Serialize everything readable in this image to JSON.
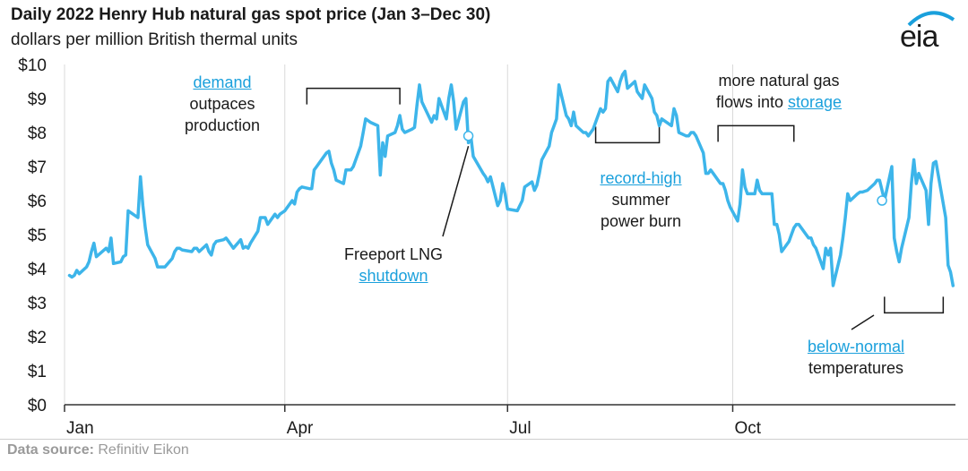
{
  "header": {
    "title": "Daily 2022 Henry Hub natural gas spot price (Jan 3–Dec 30)",
    "subtitle": "dollars per million British thermal units",
    "logo_text": "eia"
  },
  "footer": {
    "source_label": "Data source:",
    "source_value": "Refinitiv Eikon"
  },
  "annotations": {
    "demand_link": "demand",
    "demand_rest1": "outpaces",
    "demand_rest2": "production",
    "freeport_text": "Freeport LNG",
    "freeport_link": "shutdown",
    "record_link": "record-high",
    "record_rest1": "summer",
    "record_rest2": "power burn",
    "storage_text1": "more natural gas",
    "storage_text2": "flows into",
    "storage_link": "storage",
    "temp_link": "below-normal",
    "temp_rest": "temperatures"
  },
  "colors": {
    "line": "#3db5ea",
    "link": "#1aa0dc",
    "grid": "#d9d9d9",
    "text": "#1a1a1a"
  },
  "chart_data": {
    "type": "line",
    "title": "Daily 2022 Henry Hub natural gas spot price (Jan 3–Dec 30)",
    "ylabel": "dollars per million British thermal units",
    "ylim": [
      0,
      10
    ],
    "xlim": [
      "2022-01-01",
      "2022-12-31"
    ],
    "yticks": [
      0,
      1,
      2,
      3,
      4,
      5,
      6,
      7,
      8,
      9,
      10
    ],
    "ytick_labels": [
      "$0",
      "$1",
      "$2",
      "$3",
      "$4",
      "$5",
      "$6",
      "$7",
      "$8",
      "$9",
      "$10"
    ],
    "xticks": [
      "2022-01-01",
      "2022-04-01",
      "2022-07-01",
      "2022-10-01"
    ],
    "xtick_labels": [
      "Jan",
      "Apr",
      "Jul",
      "Oct"
    ],
    "grid": "vertical",
    "series": [
      {
        "points": [
          [
            "2022-01-03",
            3.8
          ],
          [
            "2022-01-04",
            3.75
          ],
          [
            "2022-01-05",
            3.8
          ],
          [
            "2022-01-06",
            3.95
          ],
          [
            "2022-01-07",
            3.85
          ],
          [
            "2022-01-10",
            4.05
          ],
          [
            "2022-01-11",
            4.2
          ],
          [
            "2022-01-12",
            4.5
          ],
          [
            "2022-01-13",
            4.75
          ],
          [
            "2022-01-14",
            4.35
          ],
          [
            "2022-01-18",
            4.6
          ],
          [
            "2022-01-19",
            4.5
          ],
          [
            "2022-01-20",
            4.9
          ],
          [
            "2022-01-21",
            4.15
          ],
          [
            "2022-01-24",
            4.2
          ],
          [
            "2022-01-25",
            4.35
          ],
          [
            "2022-01-26",
            4.4
          ],
          [
            "2022-01-27",
            5.7
          ],
          [
            "2022-01-28",
            5.65
          ],
          [
            "2022-01-31",
            5.5
          ],
          [
            "2022-02-01",
            6.7
          ],
          [
            "2022-02-02",
            5.85
          ],
          [
            "2022-02-03",
            5.2
          ],
          [
            "2022-02-04",
            4.7
          ],
          [
            "2022-02-07",
            4.3
          ],
          [
            "2022-02-08",
            4.05
          ],
          [
            "2022-02-09",
            4.05
          ],
          [
            "2022-02-10",
            4.05
          ],
          [
            "2022-02-11",
            4.05
          ],
          [
            "2022-02-14",
            4.3
          ],
          [
            "2022-02-15",
            4.5
          ],
          [
            "2022-02-16",
            4.6
          ],
          [
            "2022-02-17",
            4.6
          ],
          [
            "2022-02-18",
            4.55
          ],
          [
            "2022-02-22",
            4.5
          ],
          [
            "2022-02-23",
            4.6
          ],
          [
            "2022-02-24",
            4.6
          ],
          [
            "2022-02-25",
            4.5
          ],
          [
            "2022-02-28",
            4.7
          ],
          [
            "2022-03-01",
            4.5
          ],
          [
            "2022-03-02",
            4.4
          ],
          [
            "2022-03-03",
            4.7
          ],
          [
            "2022-03-04",
            4.8
          ],
          [
            "2022-03-07",
            4.85
          ],
          [
            "2022-03-08",
            4.9
          ],
          [
            "2022-03-09",
            4.8
          ],
          [
            "2022-03-10",
            4.7
          ],
          [
            "2022-03-11",
            4.6
          ],
          [
            "2022-03-14",
            4.85
          ],
          [
            "2022-03-15",
            4.6
          ],
          [
            "2022-03-16",
            4.65
          ],
          [
            "2022-03-17",
            4.6
          ],
          [
            "2022-03-18",
            4.75
          ],
          [
            "2022-03-21",
            5.1
          ],
          [
            "2022-03-22",
            5.5
          ],
          [
            "2022-03-23",
            5.5
          ],
          [
            "2022-03-24",
            5.5
          ],
          [
            "2022-03-25",
            5.3
          ],
          [
            "2022-03-28",
            5.6
          ],
          [
            "2022-03-29",
            5.5
          ],
          [
            "2022-03-30",
            5.6
          ],
          [
            "2022-04-01",
            5.7
          ],
          [
            "2022-04-04",
            6.0
          ],
          [
            "2022-04-05",
            5.9
          ],
          [
            "2022-04-06",
            6.25
          ],
          [
            "2022-04-07",
            6.35
          ],
          [
            "2022-04-08",
            6.4
          ],
          [
            "2022-04-11",
            6.35
          ],
          [
            "2022-04-12",
            6.35
          ],
          [
            "2022-04-13",
            6.9
          ],
          [
            "2022-04-14",
            7.0
          ],
          [
            "2022-04-18",
            7.4
          ],
          [
            "2022-04-19",
            7.45
          ],
          [
            "2022-04-20",
            7.1
          ],
          [
            "2022-04-21",
            6.9
          ],
          [
            "2022-04-22",
            6.6
          ],
          [
            "2022-04-25",
            6.5
          ],
          [
            "2022-04-26",
            6.9
          ],
          [
            "2022-04-27",
            6.9
          ],
          [
            "2022-04-28",
            6.9
          ],
          [
            "2022-04-29",
            7.0
          ],
          [
            "2022-05-02",
            7.6
          ],
          [
            "2022-05-03",
            8.0
          ],
          [
            "2022-05-04",
            8.4
          ],
          [
            "2022-05-05",
            8.35
          ],
          [
            "2022-05-06",
            8.3
          ],
          [
            "2022-05-09",
            8.2
          ],
          [
            "2022-05-10",
            6.75
          ],
          [
            "2022-05-11",
            7.7
          ],
          [
            "2022-05-12",
            7.3
          ],
          [
            "2022-05-13",
            7.9
          ],
          [
            "2022-05-16",
            8.0
          ],
          [
            "2022-05-17",
            8.2
          ],
          [
            "2022-05-18",
            8.5
          ],
          [
            "2022-05-19",
            8.1
          ],
          [
            "2022-05-20",
            8.0
          ],
          [
            "2022-05-23",
            8.1
          ],
          [
            "2022-05-24",
            8.15
          ],
          [
            "2022-05-25",
            8.8
          ],
          [
            "2022-05-26",
            9.4
          ],
          [
            "2022-05-27",
            8.9
          ],
          [
            "2022-05-31",
            8.3
          ],
          [
            "2022-06-01",
            8.5
          ],
          [
            "2022-06-02",
            8.4
          ],
          [
            "2022-06-03",
            9.0
          ],
          [
            "2022-06-06",
            8.4
          ],
          [
            "2022-06-07",
            9.0
          ],
          [
            "2022-06-08",
            9.4
          ],
          [
            "2022-06-09",
            8.9
          ],
          [
            "2022-06-10",
            8.1
          ],
          [
            "2022-06-13",
            8.9
          ],
          [
            "2022-06-14",
            9.0
          ],
          [
            "2022-06-15",
            7.7
          ],
          [
            "2022-06-16",
            7.9
          ],
          [
            "2022-06-17",
            7.3
          ],
          [
            "2022-06-21",
            6.8
          ],
          [
            "2022-06-22",
            6.7
          ],
          [
            "2022-06-23",
            6.55
          ],
          [
            "2022-06-24",
            6.7
          ],
          [
            "2022-06-27",
            5.85
          ],
          [
            "2022-06-28",
            6.0
          ],
          [
            "2022-06-29",
            6.5
          ],
          [
            "2022-06-30",
            6.2
          ],
          [
            "2022-07-01",
            5.75
          ],
          [
            "2022-07-05",
            5.7
          ],
          [
            "2022-07-06",
            5.85
          ],
          [
            "2022-07-07",
            6.0
          ],
          [
            "2022-07-08",
            6.4
          ],
          [
            "2022-07-11",
            6.55
          ],
          [
            "2022-07-12",
            6.3
          ],
          [
            "2022-07-13",
            6.45
          ],
          [
            "2022-07-14",
            6.8
          ],
          [
            "2022-07-15",
            7.2
          ],
          [
            "2022-07-18",
            7.6
          ],
          [
            "2022-07-19",
            8.0
          ],
          [
            "2022-07-20",
            8.2
          ],
          [
            "2022-07-21",
            8.4
          ],
          [
            "2022-07-22",
            9.4
          ],
          [
            "2022-07-25",
            8.5
          ],
          [
            "2022-07-26",
            8.4
          ],
          [
            "2022-07-27",
            8.2
          ],
          [
            "2022-07-28",
            8.6
          ],
          [
            "2022-07-29",
            8.2
          ],
          [
            "2022-08-01",
            8.0
          ],
          [
            "2022-08-02",
            8.0
          ],
          [
            "2022-08-03",
            7.9
          ],
          [
            "2022-08-04",
            8.0
          ],
          [
            "2022-08-05",
            8.1
          ],
          [
            "2022-08-08",
            8.7
          ],
          [
            "2022-08-09",
            8.6
          ],
          [
            "2022-08-10",
            8.7
          ],
          [
            "2022-08-11",
            9.5
          ],
          [
            "2022-08-12",
            9.6
          ],
          [
            "2022-08-15",
            9.2
          ],
          [
            "2022-08-16",
            9.5
          ],
          [
            "2022-08-17",
            9.7
          ],
          [
            "2022-08-18",
            9.8
          ],
          [
            "2022-08-19",
            9.3
          ],
          [
            "2022-08-22",
            9.5
          ],
          [
            "2022-08-23",
            9.2
          ],
          [
            "2022-08-24",
            9.1
          ],
          [
            "2022-08-25",
            9.0
          ],
          [
            "2022-08-26",
            9.4
          ],
          [
            "2022-08-29",
            9.0
          ],
          [
            "2022-08-30",
            8.6
          ],
          [
            "2022-08-31",
            8.5
          ],
          [
            "2022-09-01",
            8.2
          ],
          [
            "2022-09-02",
            8.4
          ],
          [
            "2022-09-06",
            8.2
          ],
          [
            "2022-09-07",
            8.7
          ],
          [
            "2022-09-08",
            8.5
          ],
          [
            "2022-09-09",
            8.0
          ],
          [
            "2022-09-12",
            7.9
          ],
          [
            "2022-09-13",
            7.9
          ],
          [
            "2022-09-14",
            8.0
          ],
          [
            "2022-09-15",
            8.0
          ],
          [
            "2022-09-16",
            7.9
          ],
          [
            "2022-09-19",
            7.4
          ],
          [
            "2022-09-20",
            6.8
          ],
          [
            "2022-09-21",
            6.8
          ],
          [
            "2022-09-22",
            6.9
          ],
          [
            "2022-09-23",
            6.8
          ],
          [
            "2022-09-26",
            6.5
          ],
          [
            "2022-09-27",
            6.5
          ],
          [
            "2022-09-28",
            6.3
          ],
          [
            "2022-09-29",
            6.0
          ],
          [
            "2022-09-30",
            5.8
          ],
          [
            "2022-10-03",
            5.4
          ],
          [
            "2022-10-04",
            5.9
          ],
          [
            "2022-10-05",
            6.9
          ],
          [
            "2022-10-06",
            6.4
          ],
          [
            "2022-10-07",
            6.2
          ],
          [
            "2022-10-10",
            6.2
          ],
          [
            "2022-10-11",
            6.6
          ],
          [
            "2022-10-12",
            6.3
          ],
          [
            "2022-10-13",
            6.2
          ],
          [
            "2022-10-14",
            6.2
          ],
          [
            "2022-10-17",
            6.2
          ],
          [
            "2022-10-18",
            5.3
          ],
          [
            "2022-10-19",
            5.3
          ],
          [
            "2022-10-20",
            5.0
          ],
          [
            "2022-10-21",
            4.5
          ],
          [
            "2022-10-24",
            4.8
          ],
          [
            "2022-10-25",
            5.0
          ],
          [
            "2022-10-26",
            5.2
          ],
          [
            "2022-10-27",
            5.3
          ],
          [
            "2022-10-28",
            5.3
          ],
          [
            "2022-10-31",
            5.0
          ],
          [
            "2022-11-01",
            4.9
          ],
          [
            "2022-11-02",
            4.9
          ],
          [
            "2022-11-03",
            4.7
          ],
          [
            "2022-11-04",
            4.6
          ],
          [
            "2022-11-07",
            4.0
          ],
          [
            "2022-11-08",
            4.6
          ],
          [
            "2022-11-09",
            4.4
          ],
          [
            "2022-11-10",
            4.6
          ],
          [
            "2022-11-11",
            3.5
          ],
          [
            "2022-11-14",
            4.4
          ],
          [
            "2022-11-15",
            4.9
          ],
          [
            "2022-11-16",
            5.5
          ],
          [
            "2022-11-17",
            6.2
          ],
          [
            "2022-11-18",
            6.0
          ],
          [
            "2022-11-21",
            6.2
          ],
          [
            "2022-11-22",
            6.25
          ],
          [
            "2022-11-23",
            6.25
          ],
          [
            "2022-11-25",
            6.3
          ],
          [
            "2022-11-28",
            6.5
          ],
          [
            "2022-11-29",
            6.6
          ],
          [
            "2022-11-30",
            6.6
          ],
          [
            "2022-12-01",
            6.3
          ],
          [
            "2022-12-02",
            6.0
          ],
          [
            "2022-12-05",
            7.0
          ],
          [
            "2022-12-06",
            4.9
          ],
          [
            "2022-12-07",
            4.5
          ],
          [
            "2022-12-08",
            4.2
          ],
          [
            "2022-12-09",
            4.6
          ],
          [
            "2022-12-12",
            5.5
          ],
          [
            "2022-12-13",
            6.5
          ],
          [
            "2022-12-14",
            7.2
          ],
          [
            "2022-12-15",
            6.5
          ],
          [
            "2022-12-16",
            6.8
          ],
          [
            "2022-12-19",
            6.3
          ],
          [
            "2022-12-20",
            5.3
          ],
          [
            "2022-12-21",
            6.5
          ],
          [
            "2022-12-22",
            7.1
          ],
          [
            "2022-12-23",
            7.15
          ],
          [
            "2022-12-27",
            5.5
          ],
          [
            "2022-12-28",
            4.1
          ],
          [
            "2022-12-29",
            3.9
          ],
          [
            "2022-12-30",
            3.5
          ]
        ]
      }
    ],
    "markers": [
      {
        "date": "2022-06-15",
        "value": 7.9
      },
      {
        "date": "2022-12-01",
        "value": 6.0
      }
    ],
    "brackets": [
      {
        "start": "2022-04-10",
        "end": "2022-05-18",
        "value": 9.3,
        "opens": "down"
      },
      {
        "start": "2022-08-06",
        "end": "2022-09-01",
        "value": 7.7,
        "opens": "up"
      },
      {
        "start": "2022-09-25",
        "end": "2022-10-26",
        "value": 8.2,
        "opens": "down"
      },
      {
        "start": "2022-12-02",
        "end": "2022-12-26",
        "value": 2.7,
        "opens": "up"
      }
    ]
  }
}
